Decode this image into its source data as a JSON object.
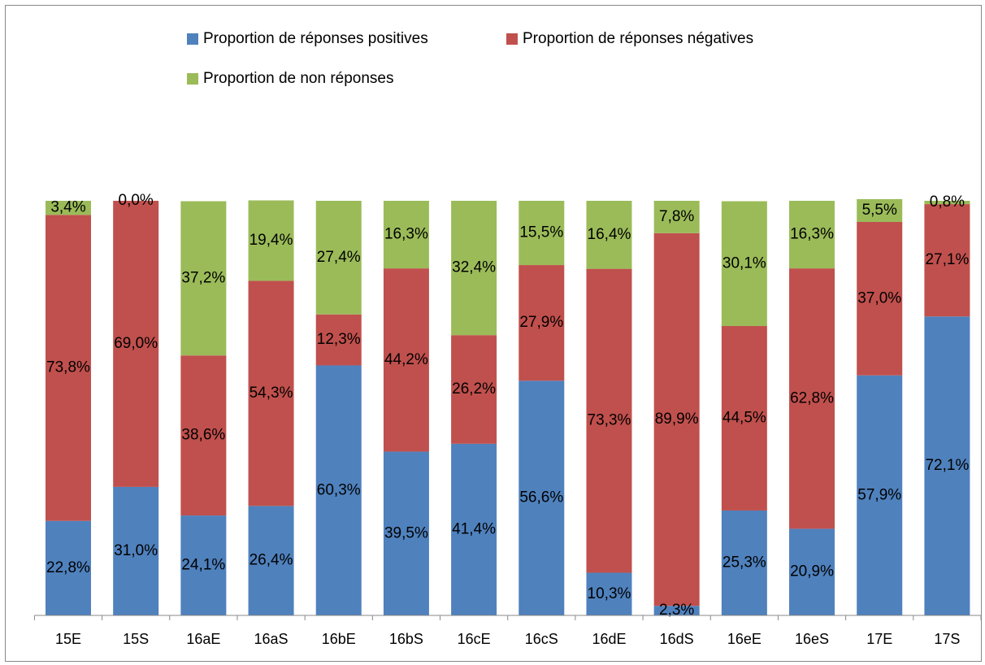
{
  "chart_data": {
    "type": "stacked_bar",
    "categories": [
      "15E",
      "15S",
      "16aE",
      "16aS",
      "16bE",
      "16bS",
      "16cE",
      "16cS",
      "16dE",
      "16dS",
      "16eE",
      "16eS",
      "17E",
      "17S"
    ],
    "ylim": [
      0,
      100
    ],
    "series": [
      {
        "name": "Proportion de réponses positives",
        "color": "#4f81bd",
        "values": [
          22.8,
          31.0,
          24.1,
          26.4,
          60.3,
          39.5,
          41.4,
          56.6,
          10.3,
          2.3,
          25.3,
          20.9,
          57.9,
          72.1
        ],
        "value_labels": [
          "22,8%",
          "31,0%",
          "24,1%",
          "26,4%",
          "60,3%",
          "39,5%",
          "41,4%",
          "56,6%",
          "10,3%",
          "2,3%",
          "25,3%",
          "20,9%",
          "57,9%",
          "72,1%"
        ]
      },
      {
        "name": "Proportion de réponses négatives",
        "color": "#c0504d",
        "values": [
          73.8,
          69.0,
          38.6,
          54.3,
          12.3,
          44.2,
          26.2,
          27.9,
          73.3,
          89.9,
          44.5,
          62.8,
          37.0,
          27.1
        ],
        "value_labels": [
          "73,8%",
          "69,0%",
          "38,6%",
          "54,3%",
          "12,3%",
          "44,2%",
          "26,2%",
          "27,9%",
          "73,3%",
          "89,9%",
          "44,5%",
          "62,8%",
          "37,0%",
          "27,1%"
        ]
      },
      {
        "name": "Proportion de non réponses",
        "color": "#9bbb59",
        "values": [
          3.4,
          0.0,
          37.2,
          19.4,
          27.4,
          16.3,
          32.4,
          15.5,
          16.4,
          7.8,
          30.1,
          16.3,
          5.5,
          0.8
        ],
        "value_labels": [
          "3,4%",
          "0,0%",
          "37,2%",
          "19,4%",
          "27,4%",
          "16,3%",
          "32,4%",
          "15,5%",
          "16,4%",
          "7,8%",
          "30,1%",
          "16,3%",
          "5,5%",
          "0,8%"
        ]
      }
    ]
  }
}
